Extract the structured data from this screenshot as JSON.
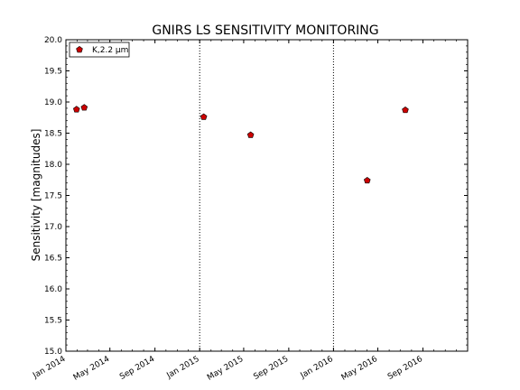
{
  "chart_data": {
    "type": "scatter",
    "title": "GNIRS LS SENSITIVITY MONITORING",
    "xlabel": "",
    "ylabel": "Sensitivity [magnitudes]",
    "x_axis_type": "date",
    "xlim": [
      "2014-01-01",
      "2017-01-01"
    ],
    "ylim": [
      15.0,
      20.0
    ],
    "y_ticks": [
      "15.0",
      "15.5",
      "16.0",
      "16.5",
      "17.0",
      "17.5",
      "18.0",
      "18.5",
      "19.0",
      "19.5",
      "20.0"
    ],
    "x_ticks": [
      {
        "date": "2014-01-01",
        "label": "Jan 2014"
      },
      {
        "date": "2014-05-01",
        "label": "May 2014"
      },
      {
        "date": "2014-09-01",
        "label": "Sep 2014"
      },
      {
        "date": "2015-01-01",
        "label": "Jan 2015"
      },
      {
        "date": "2015-05-01",
        "label": "May 2015"
      },
      {
        "date": "2015-09-01",
        "label": "Sep 2015"
      },
      {
        "date": "2016-01-01",
        "label": "Jan 2016"
      },
      {
        "date": "2016-05-01",
        "label": "May 2016"
      },
      {
        "date": "2016-09-01",
        "label": "Sep 2016"
      }
    ],
    "vertical_dotted_lines": [
      "2015-01-01",
      "2016-01-01"
    ],
    "legend_position": "top-left",
    "marker_color": "#cc0000",
    "marker_shape": "pentagon",
    "series": [
      {
        "name": "K,2.2 μm",
        "points": [
          {
            "x": "2014-01-30",
            "y": 18.88
          },
          {
            "x": "2014-02-20",
            "y": 18.91
          },
          {
            "x": "2015-01-12",
            "y": 18.76
          },
          {
            "x": "2015-05-20",
            "y": 18.47
          },
          {
            "x": "2016-04-02",
            "y": 17.74
          },
          {
            "x": "2016-07-15",
            "y": 18.87
          }
        ]
      }
    ]
  }
}
